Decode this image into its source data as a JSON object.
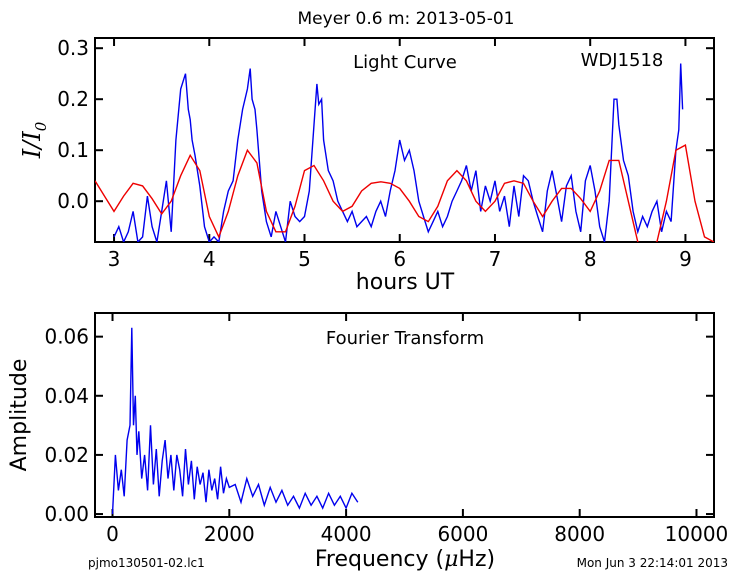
{
  "page": {
    "suptitle": "Meyer 0.6 m:  2013-05-01",
    "footer_left": "pjmo130501-02.lc1",
    "footer_right": "Mon Jun  3 22:14:01 2013"
  },
  "chart_data": [
    {
      "type": "line",
      "annotation_center": "Light Curve",
      "annotation_right": "WDJ1518",
      "xlabel": "hours UT",
      "ylabel_main": "I/I",
      "ylabel_sub": "0",
      "xlim": [
        2.8,
        9.3
      ],
      "ylim": [
        -0.08,
        0.32
      ],
      "xticks": [
        3,
        4,
        5,
        6,
        7,
        8,
        9
      ],
      "yticks": [
        0.0,
        0.1,
        0.2,
        0.3
      ],
      "ytick_labels": [
        "0.0",
        "0.1",
        "0.2",
        "0.3"
      ],
      "grid": false,
      "series": [
        {
          "color": "#0000ee",
          "x": [
            3.0,
            3.05,
            3.1,
            3.15,
            3.2,
            3.25,
            3.3,
            3.35,
            3.4,
            3.45,
            3.5,
            3.55,
            3.6,
            3.65,
            3.7,
            3.75,
            3.78,
            3.8,
            3.82,
            3.85,
            3.9,
            3.95,
            4.0,
            4.05,
            4.1,
            4.15,
            4.2,
            4.25,
            4.3,
            4.35,
            4.4,
            4.43,
            4.45,
            4.48,
            4.5,
            4.55,
            4.6,
            4.65,
            4.7,
            4.75,
            4.8,
            4.85,
            4.9,
            4.95,
            5.0,
            5.05,
            5.1,
            5.13,
            5.15,
            5.18,
            5.2,
            5.25,
            5.3,
            5.35,
            5.4,
            5.45,
            5.5,
            5.55,
            5.6,
            5.65,
            5.7,
            5.75,
            5.8,
            5.85,
            5.9,
            5.95,
            6.0,
            6.05,
            6.1,
            6.15,
            6.2,
            6.25,
            6.3,
            6.35,
            6.4,
            6.45,
            6.5,
            6.55,
            6.6,
            6.65,
            6.7,
            6.75,
            6.8,
            6.85,
            6.9,
            6.95,
            7.0,
            7.05,
            7.1,
            7.15,
            7.2,
            7.25,
            7.3,
            7.35,
            7.4,
            7.45,
            7.5,
            7.55,
            7.6,
            7.65,
            7.7,
            7.75,
            7.8,
            7.85,
            7.9,
            7.95,
            8.0,
            8.05,
            8.1,
            8.15,
            8.2,
            8.25,
            8.28,
            8.3,
            8.35,
            8.4,
            8.45,
            8.5,
            8.55,
            8.6,
            8.65,
            8.7,
            8.75,
            8.8,
            8.85,
            8.9,
            8.93,
            8.95,
            8.97
          ],
          "y": [
            -0.07,
            -0.05,
            -0.08,
            -0.06,
            -0.02,
            -0.08,
            -0.07,
            0.01,
            -0.05,
            -0.08,
            -0.02,
            0.04,
            -0.06,
            0.12,
            0.22,
            0.25,
            0.18,
            0.16,
            0.12,
            0.09,
            0.03,
            -0.05,
            -0.08,
            -0.07,
            -0.08,
            -0.02,
            0.02,
            0.04,
            0.12,
            0.18,
            0.22,
            0.26,
            0.2,
            0.18,
            0.14,
            0.02,
            -0.04,
            -0.07,
            -0.02,
            -0.05,
            -0.08,
            0.0,
            -0.03,
            -0.04,
            -0.03,
            0.02,
            0.15,
            0.23,
            0.19,
            0.2,
            0.12,
            0.06,
            0.04,
            0.0,
            -0.02,
            -0.04,
            -0.02,
            -0.05,
            -0.04,
            -0.03,
            -0.05,
            -0.02,
            0.0,
            -0.03,
            0.02,
            0.06,
            0.12,
            0.08,
            0.1,
            0.06,
            0.0,
            -0.03,
            -0.06,
            -0.04,
            -0.02,
            -0.05,
            -0.03,
            0.0,
            0.02,
            0.04,
            0.07,
            0.02,
            0.06,
            -0.02,
            0.03,
            0.0,
            0.04,
            -0.02,
            0.01,
            -0.05,
            0.03,
            -0.03,
            0.05,
            0.04,
            0.0,
            -0.03,
            -0.06,
            0.02,
            0.06,
            0.01,
            -0.04,
            0.03,
            0.05,
            -0.02,
            -0.06,
            0.04,
            0.07,
            0.02,
            -0.05,
            -0.08,
            0.0,
            0.2,
            0.2,
            0.15,
            0.08,
            0.05,
            -0.02,
            -0.06,
            -0.03,
            -0.05,
            -0.02,
            0.0,
            -0.06,
            -0.02,
            -0.04,
            0.1,
            0.14,
            0.27,
            0.18
          ],
          "name": ""
        },
        {
          "color": "#ee0000",
          "x": [
            2.8,
            2.9,
            3.0,
            3.1,
            3.2,
            3.3,
            3.4,
            3.5,
            3.6,
            3.7,
            3.8,
            3.9,
            4.0,
            4.1,
            4.2,
            4.3,
            4.4,
            4.5,
            4.6,
            4.7,
            4.8,
            4.9,
            5.0,
            5.1,
            5.2,
            5.3,
            5.4,
            5.5,
            5.6,
            5.7,
            5.8,
            5.9,
            6.0,
            6.1,
            6.2,
            6.3,
            6.4,
            6.5,
            6.6,
            6.7,
            6.8,
            6.9,
            7.0,
            7.1,
            7.2,
            7.3,
            7.4,
            7.5,
            7.6,
            7.7,
            7.8,
            7.9,
            8.0,
            8.1,
            8.2,
            8.3,
            8.4,
            8.5,
            8.6,
            8.7,
            8.8,
            8.9,
            9.0,
            9.1,
            9.2,
            9.3
          ],
          "y": [
            0.04,
            0.01,
            -0.02,
            0.01,
            0.035,
            0.03,
            0.005,
            -0.025,
            0.0,
            0.05,
            0.09,
            0.06,
            -0.03,
            -0.07,
            -0.02,
            0.05,
            0.1,
            0.075,
            -0.02,
            -0.06,
            -0.06,
            -0.01,
            0.06,
            0.07,
            0.04,
            0.0,
            -0.02,
            -0.01,
            0.02,
            0.035,
            0.038,
            0.035,
            0.025,
            0.0,
            -0.03,
            -0.04,
            -0.01,
            0.04,
            0.06,
            0.04,
            0.0,
            -0.02,
            0.0,
            0.035,
            0.04,
            0.035,
            0.0,
            -0.03,
            0.0,
            0.025,
            0.025,
            0.005,
            -0.02,
            0.02,
            0.08,
            0.08,
            0.0,
            -0.08,
            -0.09,
            -0.08,
            0.0,
            0.1,
            0.11,
            0.0,
            -0.07,
            -0.08
          ],
          "name": ""
        }
      ]
    },
    {
      "type": "line",
      "annotation_center": "Fourier Transform",
      "xlabel_main": "Frequency (",
      "xlabel_mu": "μ",
      "xlabel_end": "Hz)",
      "ylabel": "Amplitude",
      "xlim": [
        -300,
        10300
      ],
      "ylim": [
        -0.001,
        0.068
      ],
      "xticks": [
        0,
        2000,
        4000,
        6000,
        8000,
        10000
      ],
      "yticks": [
        0.0,
        0.02,
        0.04,
        0.06
      ],
      "ytick_labels": [
        "0.00",
        "0.02",
        "0.04",
        "0.06"
      ],
      "grid": false,
      "series": [
        {
          "color": "#0000ee",
          "x": [
            0,
            50,
            100,
            150,
            200,
            250,
            300,
            330,
            360,
            390,
            420,
            450,
            500,
            550,
            600,
            650,
            700,
            750,
            800,
            850,
            900,
            950,
            1000,
            1050,
            1100,
            1150,
            1200,
            1250,
            1300,
            1350,
            1400,
            1450,
            1500,
            1550,
            1600,
            1650,
            1700,
            1750,
            1800,
            1850,
            1900,
            1950,
            2000,
            2100,
            2200,
            2300,
            2400,
            2500,
            2600,
            2700,
            2800,
            2900,
            3000,
            3100,
            3200,
            3300,
            3400,
            3500,
            3600,
            3700,
            3800,
            3900,
            4000,
            4100,
            4200
          ],
          "y": [
            0.0,
            0.02,
            0.008,
            0.015,
            0.006,
            0.025,
            0.03,
            0.063,
            0.03,
            0.04,
            0.02,
            0.028,
            0.012,
            0.02,
            0.008,
            0.03,
            0.01,
            0.022,
            0.006,
            0.018,
            0.025,
            0.012,
            0.02,
            0.008,
            0.02,
            0.015,
            0.006,
            0.022,
            0.01,
            0.018,
            0.005,
            0.016,
            0.01,
            0.014,
            0.004,
            0.015,
            0.008,
            0.012,
            0.005,
            0.016,
            0.007,
            0.012,
            0.009,
            0.01,
            0.004,
            0.012,
            0.006,
            0.01,
            0.003,
            0.009,
            0.004,
            0.008,
            0.003,
            0.006,
            0.002,
            0.007,
            0.003,
            0.006,
            0.002,
            0.007,
            0.003,
            0.006,
            0.002,
            0.007,
            0.004
          ],
          "name": ""
        }
      ]
    }
  ]
}
